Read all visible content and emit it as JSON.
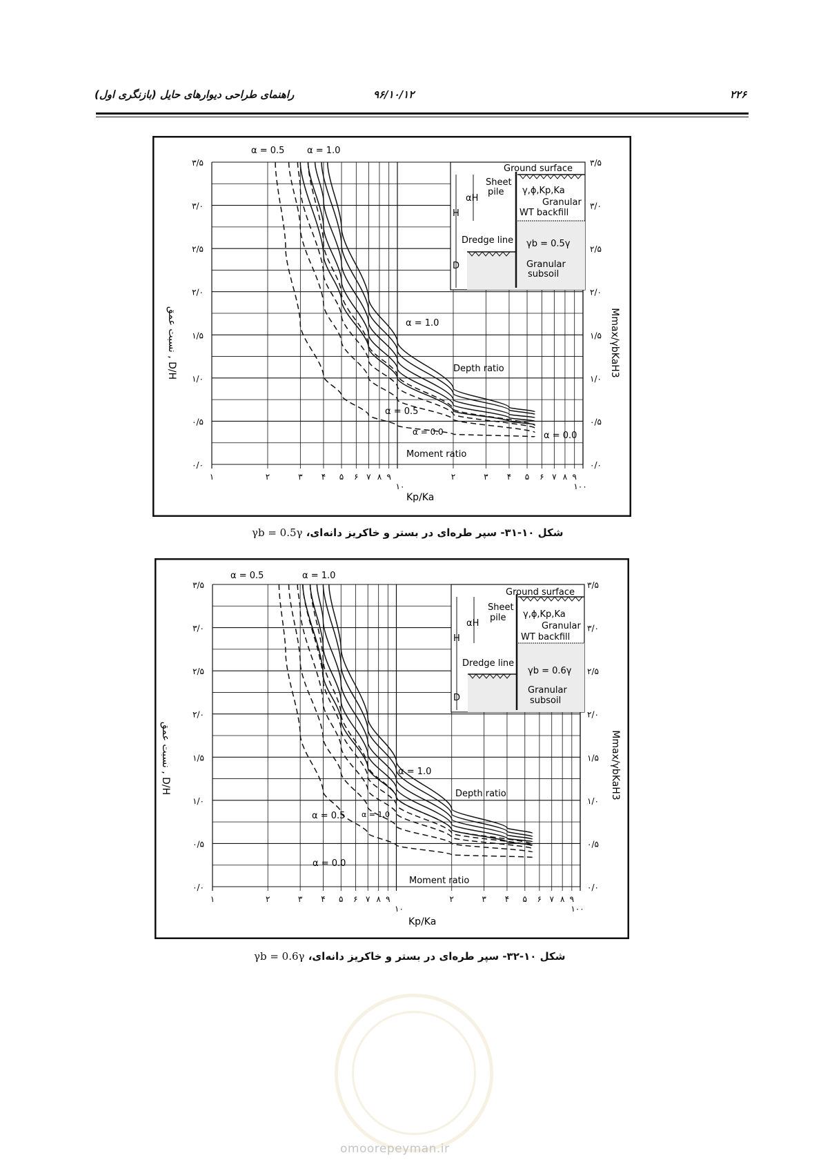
{
  "header": {
    "page_number": "۲۲۶",
    "date": "۹۶/۱۰/۱۲",
    "title": "راهنمای طراحی دیوارهای حایل (بازنگری اول)"
  },
  "figures": [
    {
      "caption_text": "شکل ۱۰-۳۱- سپر طره‌ای در بستر و خاکریز دانه‌ای،",
      "caption_formula": "γb = 0.5γ",
      "alpha_top_left": "α = 0.5",
      "alpha_top_right": "α = 1.0",
      "inset": {
        "ground_surface": "Ground surface",
        "sheet": "Sheet",
        "pile": "pile",
        "params": "γ,ϕ,Kp,Ka",
        "granular": "Granular",
        "wt_backfill": "WT backfill",
        "alpha_h": "αH",
        "h": "H",
        "dredge_line": "Dredge line",
        "gamma_b": "γb = 0.5γ",
        "granular2": "Granular",
        "subsoil": "subsoil",
        "d": "D"
      },
      "annotations": {
        "a10": "α = 1.0",
        "depth_ratio": "Depth ratio",
        "a05": "α = 0.5",
        "a00_mid": "α = 0.0",
        "a00_right": "α = 0.0",
        "moment_ratio": "Moment ratio"
      }
    },
    {
      "caption_text": "شکل ۱۰-۳۲- سپر طره‌ای در بستر و خاکریز دانه‌ای،",
      "caption_formula": "γb = 0.6γ",
      "alpha_top_left": "α = 0.5",
      "alpha_top_right": "α = 1.0",
      "inset": {
        "ground_surface": "Ground surface",
        "sheet": "Sheet",
        "pile": "pile",
        "params": "γ,ϕ,Kp,Ka",
        "granular": "Granular",
        "wt_backfill": "WT backfill",
        "alpha_h": "αH",
        "h": "H",
        "dredge_line": "Dredge line",
        "gamma_b": "γb = 0.6γ",
        "granular2": "Granular",
        "subsoil": "subsoil",
        "d": "D"
      },
      "annotations": {
        "a10": "α = 1.0",
        "depth_ratio": "Depth ratio",
        "a05": "α = 0.5",
        "a10_small": "α = 1.0",
        "a00": "α = 0.0",
        "moment_ratio": "Moment ratio"
      }
    }
  ],
  "watermark": "omoorepeyman.ir",
  "chart_data": [
    {
      "type": "line",
      "x_scale": "log",
      "xlim": [
        1,
        100
      ],
      "ylim": [
        0,
        3.5
      ],
      "xlabel": "Kp/Ka",
      "ylabel_left": "نسبت عمق , D/H",
      "ylabel_right": "Mmax/γbKaH3",
      "x_tick_labels": [
        "۱",
        "۲",
        "۳",
        "۴",
        "۵",
        "۶",
        "۷",
        "۸",
        "۹",
        "۱۰",
        "۲",
        "۳",
        "۴",
        "۵",
        "۶",
        "۷",
        "۸",
        "۹",
        "۱۰۰"
      ],
      "y_tick_labels": [
        "۰/۰",
        "۰/۵",
        "۱/۰",
        "۱/۵",
        "۲/۰",
        "۲/۵",
        "۳/۰",
        "۳/۵"
      ],
      "y_ticks": [
        0,
        0.5,
        1.0,
        1.5,
        2.0,
        2.5,
        3.0,
        3.5
      ],
      "series": [
        {
          "group": "depth",
          "style": "solid",
          "points": [
            [
              3.0,
              3.5
            ],
            [
              4,
              2.42
            ],
            [
              5,
              1.9
            ],
            [
              7,
              1.35
            ],
            [
              10,
              1.0
            ],
            [
              20,
              0.62
            ],
            [
              40,
              0.5
            ],
            [
              55,
              0.46
            ]
          ]
        },
        {
          "group": "depth",
          "style": "solid",
          "points": [
            [
              3.3,
              3.5
            ],
            [
              4,
              2.75
            ],
            [
              5,
              2.12
            ],
            [
              7,
              1.5
            ],
            [
              10,
              1.11
            ],
            [
              20,
              0.69
            ],
            [
              40,
              0.54
            ],
            [
              55,
              0.5
            ]
          ]
        },
        {
          "group": "depth",
          "style": "solid",
          "points": [
            [
              3.6,
              3.5
            ],
            [
              4,
              3.05
            ],
            [
              5,
              2.32
            ],
            [
              7,
              1.64
            ],
            [
              10,
              1.21
            ],
            [
              20,
              0.75
            ],
            [
              40,
              0.58
            ],
            [
              55,
              0.54
            ]
          ]
        },
        {
          "group": "depth",
          "style": "solid",
          "points": [
            [
              3.9,
              3.5
            ],
            [
              5,
              2.54
            ],
            [
              7,
              1.78
            ],
            [
              10,
              1.32
            ],
            [
              20,
              0.82
            ],
            [
              40,
              0.63
            ],
            [
              55,
              0.58
            ]
          ]
        },
        {
          "group": "depth",
          "style": "solid",
          "points": [
            [
              4.2,
              3.5
            ],
            [
              5,
              2.74
            ],
            [
              7,
              1.92
            ],
            [
              10,
              1.42
            ],
            [
              20,
              0.88
            ],
            [
              40,
              0.66
            ],
            [
              55,
              0.61
            ]
          ]
        },
        {
          "group": "moment",
          "style": "dashed",
          "points": [
            [
              2.2,
              3.5
            ],
            [
              2.5,
              2.5
            ],
            [
              3,
              1.62
            ],
            [
              4,
              1.02
            ],
            [
              5,
              0.8
            ],
            [
              7,
              0.57
            ],
            [
              10,
              0.45
            ],
            [
              20,
              0.35
            ],
            [
              55,
              0.32
            ]
          ]
        },
        {
          "group": "moment",
          "style": "dashed",
          "points": [
            [
              2.6,
              3.5
            ],
            [
              3,
              2.74
            ],
            [
              4,
              1.85
            ],
            [
              5,
              1.42
            ],
            [
              7,
              1.0
            ],
            [
              10,
              0.75
            ],
            [
              20,
              0.52
            ],
            [
              55,
              0.37
            ]
          ]
        },
        {
          "group": "moment",
          "style": "dashed",
          "points": [
            [
              2.9,
              3.5
            ],
            [
              3,
              3.2
            ],
            [
              4,
              2.2
            ],
            [
              5,
              1.72
            ],
            [
              7,
              1.2
            ],
            [
              10,
              0.9
            ],
            [
              20,
              0.58
            ],
            [
              55,
              0.42
            ]
          ]
        },
        {
          "group": "moment",
          "style": "dashed",
          "points": [
            [
              3.3,
              3.5
            ],
            [
              4,
              2.55
            ],
            [
              5,
              1.98
            ],
            [
              7,
              1.38
            ],
            [
              10,
              1.03
            ],
            [
              20,
              0.64
            ],
            [
              55,
              0.45
            ]
          ]
        }
      ]
    },
    {
      "type": "line",
      "x_scale": "log",
      "xlim": [
        1,
        100
      ],
      "ylim": [
        0,
        3.5
      ],
      "xlabel": "Kp/Ka",
      "ylabel_left": "نسبت عمق , D/H",
      "ylabel_right": "Mmax/γbKaH3",
      "x_tick_labels": [
        "۱",
        "۲",
        "۳",
        "۴",
        "۵",
        "۶",
        "۷",
        "۸",
        "۹",
        "۱۰",
        "۲",
        "۳",
        "۴",
        "۵",
        "۶",
        "۷",
        "۸",
        "۹",
        "۱۰۰"
      ],
      "y_tick_labels": [
        "۰/۰",
        "۰/۵",
        "۱/۰",
        "۱/۵",
        "۲/۰",
        "۲/۵",
        "۳/۰",
        "۳/۵"
      ],
      "y_ticks": [
        0,
        0.5,
        1.0,
        1.5,
        2.0,
        2.5,
        3.0,
        3.5
      ],
      "series": [
        {
          "group": "depth",
          "style": "solid",
          "points": [
            [
              3.1,
              3.5
            ],
            [
              4,
              2.45
            ],
            [
              5,
              1.93
            ],
            [
              7,
              1.38
            ],
            [
              10,
              1.04
            ],
            [
              20,
              0.66
            ],
            [
              40,
              0.52
            ],
            [
              55,
              0.48
            ]
          ]
        },
        {
          "group": "depth",
          "style": "solid",
          "points": [
            [
              3.4,
              3.5
            ],
            [
              4,
              2.78
            ],
            [
              5,
              2.15
            ],
            [
              7,
              1.53
            ],
            [
              10,
              1.14
            ],
            [
              20,
              0.72
            ],
            [
              40,
              0.56
            ],
            [
              55,
              0.52
            ]
          ]
        },
        {
          "group": "depth",
          "style": "solid",
          "points": [
            [
              3.7,
              3.5
            ],
            [
              4,
              3.08
            ],
            [
              5,
              2.35
            ],
            [
              7,
              1.67
            ],
            [
              10,
              1.24
            ],
            [
              20,
              0.78
            ],
            [
              40,
              0.6
            ],
            [
              55,
              0.55
            ]
          ]
        },
        {
          "group": "depth",
          "style": "solid",
          "points": [
            [
              4.0,
              3.5
            ],
            [
              5,
              2.56
            ],
            [
              7,
              1.82
            ],
            [
              10,
              1.35
            ],
            [
              20,
              0.84
            ],
            [
              40,
              0.64
            ],
            [
              55,
              0.58
            ]
          ]
        },
        {
          "group": "depth",
          "style": "solid",
          "points": [
            [
              4.3,
              3.5
            ],
            [
              5,
              2.76
            ],
            [
              7,
              1.95
            ],
            [
              10,
              1.45
            ],
            [
              20,
              0.9
            ],
            [
              40,
              0.68
            ],
            [
              55,
              0.62
            ]
          ]
        },
        {
          "group": "moment",
          "style": "dashed",
          "points": [
            [
              2.3,
              3.5
            ],
            [
              2.5,
              2.7
            ],
            [
              3,
              1.76
            ],
            [
              4,
              1.1
            ],
            [
              5,
              0.86
            ],
            [
              7,
              0.62
            ],
            [
              10,
              0.48
            ],
            [
              20,
              0.37
            ],
            [
              55,
              0.34
            ]
          ]
        },
        {
          "group": "moment",
          "style": "dashed",
          "points": [
            [
              2.6,
              3.5
            ],
            [
              3,
              2.6
            ],
            [
              4,
              1.72
            ],
            [
              5,
              1.32
            ],
            [
              7,
              0.92
            ],
            [
              10,
              0.7
            ],
            [
              20,
              0.5
            ],
            [
              55,
              0.4
            ]
          ]
        },
        {
          "group": "moment",
          "style": "dashed",
          "points": [
            [
              2.9,
              3.5
            ],
            [
              3,
              3.2
            ],
            [
              4,
              2.12
            ],
            [
              5,
              1.62
            ],
            [
              7,
              1.12
            ],
            [
              10,
              0.85
            ],
            [
              20,
              0.57
            ],
            [
              55,
              0.44
            ]
          ]
        },
        {
          "group": "moment",
          "style": "dashed",
          "points": [
            [
              3.1,
              3.5
            ],
            [
              4,
              2.38
            ],
            [
              5,
              1.82
            ],
            [
              7,
              1.27
            ],
            [
              10,
              0.95
            ],
            [
              20,
              0.62
            ],
            [
              55,
              0.47
            ]
          ]
        },
        {
          "group": "moment",
          "style": "dashed",
          "points": [
            [
              3.4,
              3.5
            ],
            [
              4,
              2.62
            ],
            [
              5,
              2.0
            ],
            [
              7,
              1.4
            ],
            [
              10,
              1.04
            ],
            [
              20,
              0.66
            ],
            [
              55,
              0.49
            ]
          ]
        }
      ]
    }
  ]
}
